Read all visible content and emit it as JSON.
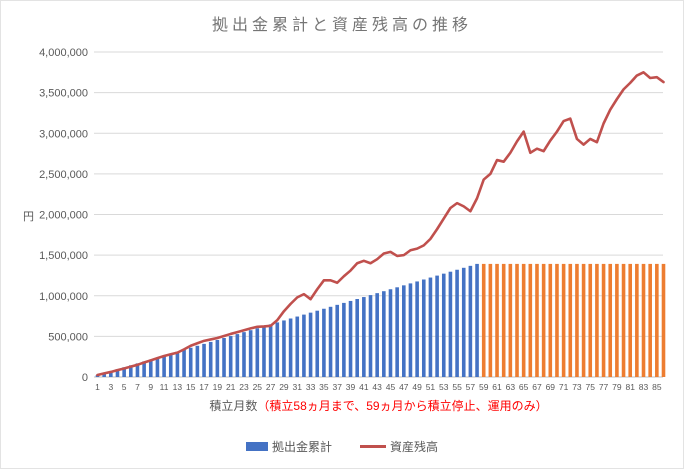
{
  "chart_data": {
    "type": "combo-bar-line",
    "title": "拠出金累計と資産残高の推移",
    "y_axis": {
      "title": "円",
      "min": 0,
      "max": 4000000,
      "step": 500000,
      "tick_labels": [
        "0",
        "500,000",
        "1,000,000",
        "1,500,000",
        "2,000,000",
        "2,500,000",
        "3,000,000",
        "3,500,000",
        "4,000,000"
      ]
    },
    "x_axis": {
      "title_main": "積立月数",
      "title_annotation": "（積立58ヵ月まで、59ヵ月から積立停止、運用のみ）",
      "annotation_color": "#ff0000",
      "tick_labels": [
        "1",
        "3",
        "5",
        "7",
        "9",
        "11",
        "13",
        "15",
        "17",
        "19",
        "21",
        "23",
        "25",
        "27",
        "29",
        "31",
        "33",
        "35",
        "37",
        "39",
        "41",
        "43",
        "45",
        "47",
        "49",
        "51",
        "53",
        "55",
        "57",
        "59",
        "61",
        "63",
        "65",
        "67",
        "69",
        "71",
        "73",
        "75",
        "77",
        "79",
        "81",
        "83",
        "85"
      ]
    },
    "months": 86,
    "contribution_stop_month": 58,
    "grid_color": "#d9d9d9",
    "axis_line_color": "#bfbfbf",
    "text_color": "#595959",
    "series": [
      {
        "name": "拠出金累計",
        "type": "bar",
        "color_active": "#4472c4",
        "color_stopped": "#ed7d31",
        "values": [
          24000,
          48000,
          72000,
          96000,
          120000,
          144000,
          168000,
          192000,
          216000,
          240000,
          264000,
          288000,
          312000,
          336000,
          360000,
          384000,
          408000,
          432000,
          456000,
          480000,
          504000,
          528000,
          552000,
          576000,
          600000,
          624000,
          648000,
          672000,
          696000,
          720000,
          744000,
          768000,
          792000,
          816000,
          840000,
          864000,
          888000,
          912000,
          936000,
          960000,
          984000,
          1008000,
          1032000,
          1056000,
          1080000,
          1104000,
          1128000,
          1152000,
          1176000,
          1200000,
          1224000,
          1248000,
          1272000,
          1296000,
          1320000,
          1344000,
          1368000,
          1392000,
          1392000,
          1392000,
          1392000,
          1392000,
          1392000,
          1392000,
          1392000,
          1392000,
          1392000,
          1392000,
          1392000,
          1392000,
          1392000,
          1392000,
          1392000,
          1392000,
          1392000,
          1392000,
          1392000,
          1392000,
          1392000,
          1392000,
          1392000,
          1392000,
          1392000,
          1392000,
          1392000,
          1392000
        ]
      },
      {
        "name": "資産残高",
        "type": "line",
        "color": "#c0504d",
        "values": [
          24000,
          45000,
          62000,
          85000,
          105000,
          128000,
          150000,
          178000,
          205000,
          232000,
          258000,
          280000,
          300000,
          340000,
          385000,
          415000,
          445000,
          462000,
          480000,
          505000,
          530000,
          552000,
          575000,
          598000,
          618000,
          622000,
          630000,
          700000,
          810000,
          900000,
          980000,
          1020000,
          958000,
          1080000,
          1190000,
          1190000,
          1160000,
          1240000,
          1310000,
          1400000,
          1430000,
          1400000,
          1450000,
          1520000,
          1540000,
          1490000,
          1500000,
          1560000,
          1580000,
          1620000,
          1700000,
          1820000,
          1950000,
          2080000,
          2140000,
          2100000,
          2040000,
          2200000,
          2430000,
          2500000,
          2670000,
          2650000,
          2760000,
          2900000,
          3020000,
          2760000,
          2810000,
          2780000,
          2910000,
          3020000,
          3150000,
          3180000,
          2930000,
          2860000,
          2930000,
          2890000,
          3120000,
          3290000,
          3420000,
          3540000,
          3620000,
          3710000,
          3750000,
          3680000,
          3690000,
          3630000
        ]
      }
    ],
    "legend": [
      {
        "label": "拠出金累計",
        "swatch": "bar",
        "color": "#4472c4"
      },
      {
        "label": "資産残高",
        "swatch": "line",
        "color": "#c0504d"
      }
    ]
  }
}
